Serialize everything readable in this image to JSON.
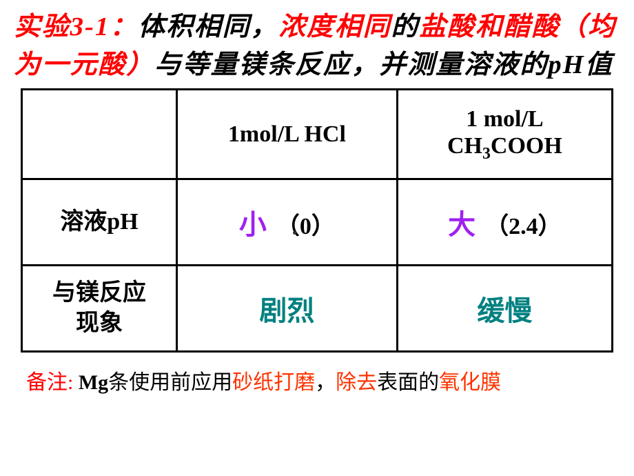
{
  "title": {
    "label": "实验3-1：",
    "p1": "体积相同，",
    "p2": "浓度相同",
    "p3": "的",
    "p4": "盐酸和醋酸（均为一元酸）",
    "p5": "与等量镁条反应，并测量溶液的pH值"
  },
  "table": {
    "header_blank": "",
    "header_col1": "1mol/L HCl",
    "header_col2_a": "1 mol/L",
    "header_col2_b": "CH",
    "header_col2_sub": "3",
    "header_col2_c": "COOH",
    "row1_label": "溶液pH",
    "row1_c1_a": "小",
    "row1_c1_b": "（0）",
    "row1_c2_a": "大",
    "row1_c2_b": "（2.4）",
    "row2_label_a": "与镁反应",
    "row2_label_b": "现象",
    "row2_c1": "剧烈",
    "row2_c2": "缓慢"
  },
  "note": {
    "label": "备注:",
    "t1": " Mg",
    "t2": "条使用前应用",
    "t3": "砂纸打磨",
    "t4": "，",
    "t5": "除去",
    "t6": "表面的",
    "t7": "氧化膜"
  },
  "colors": {
    "red": "#ff0000",
    "purple": "#a020f0",
    "teal": "#008080",
    "black": "#000000"
  }
}
